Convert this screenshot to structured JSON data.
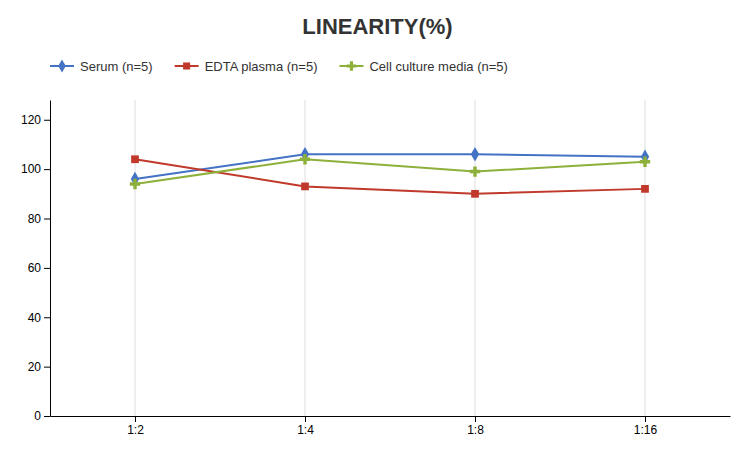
{
  "chart_data": {
    "type": "line",
    "title": "LINEARITY(%)",
    "categories": [
      "1:2",
      "1:4",
      "1:8",
      "1:16"
    ],
    "series": [
      {
        "name": "Serum (n=5)",
        "color": "#4472C4",
        "marker": "diamond",
        "values": [
          96,
          106,
          106,
          105
        ]
      },
      {
        "name": "EDTA plasma (n=5)",
        "color": "#C0392B",
        "marker": "square",
        "values": [
          104,
          93,
          90,
          92
        ]
      },
      {
        "name": "Cell culture media (n=5)",
        "color": "#8DB03A",
        "marker": "plus",
        "values": [
          94,
          104,
          99,
          103
        ]
      }
    ],
    "ylim": [
      0,
      128
    ],
    "yticks": [
      0,
      20,
      40,
      60,
      80,
      100,
      120
    ],
    "grid": "x",
    "legend": "top"
  }
}
